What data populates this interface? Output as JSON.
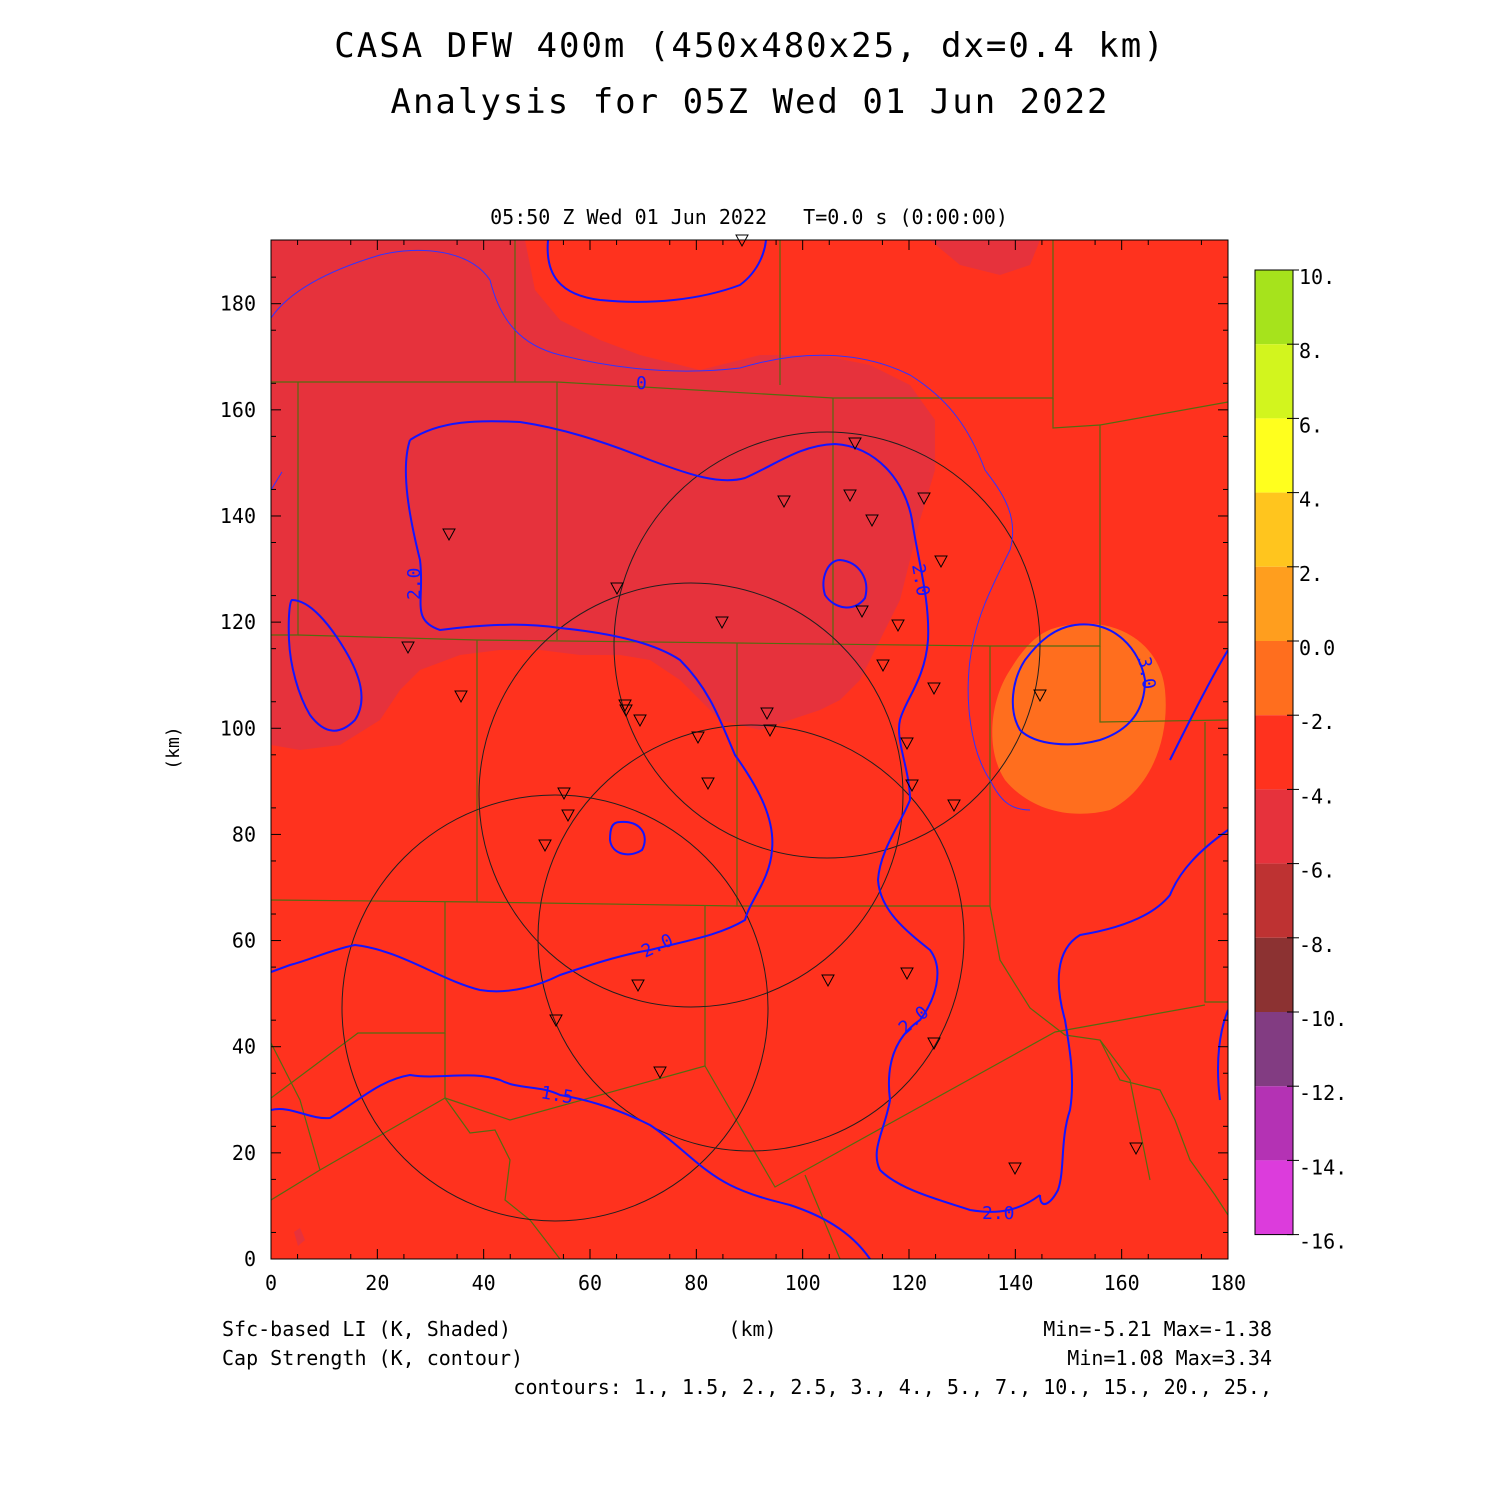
{
  "title": {
    "line1": "CASA DFW 400m (450x480x25, dx=0.4 km)",
    "line2": "Analysis for 05Z Wed 01 Jun 2022"
  },
  "subtitle": "05:50 Z Wed 01 Jun 2022   T=0.0 s (0:00:00)",
  "axes": {
    "x_label": "(km)",
    "y_label": "(km)",
    "x_ticks": [
      "0",
      "20",
      "40",
      "60",
      "80",
      "100",
      "120",
      "140",
      "160",
      "180"
    ],
    "y_ticks": [
      "0",
      "20",
      "40",
      "60",
      "80",
      "100",
      "120",
      "140",
      "160",
      "180"
    ],
    "xlim": [
      0,
      180
    ],
    "ylim": [
      0,
      192
    ]
  },
  "colorbar": {
    "labels": [
      "10.",
      "8.",
      "6.",
      "4.",
      "2.",
      "0.0",
      "-2.",
      "-4.",
      "-6.",
      "-8.",
      "-10.",
      "-12.",
      "-14.",
      "-16."
    ],
    "colors": [
      "#a6e31c",
      "#d2f51e",
      "#ffff1e",
      "#ffc51e",
      "#ff9e1e",
      "#ff6e1e",
      "#ff321e",
      "#e6323c",
      "#be3232",
      "#8c3232",
      "#823c82",
      "#b432b4",
      "#dc3cdc"
    ]
  },
  "footer": {
    "left1": "Sfc-based LI (K, Shaded)",
    "left2": "Cap Strength (K, contour)",
    "center": "(km)",
    "right1": "Min=-5.21 Max=-1.38",
    "right2": "Min=1.08 Max=3.34",
    "contours": "contours: 1., 1.5, 2., 2.5, 3., 4., 5., 7., 10., 15., 20., 25.,"
  },
  "contour_labels": [
    "2.0",
    "2.0",
    "2.0",
    "2.0",
    "2.0",
    "1.5",
    "3.0",
    "0"
  ],
  "colors": {
    "background_field": "#ff321e",
    "minus4_field": "#e6323c",
    "orange_field": "#ff6e1e",
    "yellow_orange_field": "#ff9e1e",
    "contour": "#1414ff",
    "county_lines": "#556b10",
    "radar_rings": "#202020"
  }
}
